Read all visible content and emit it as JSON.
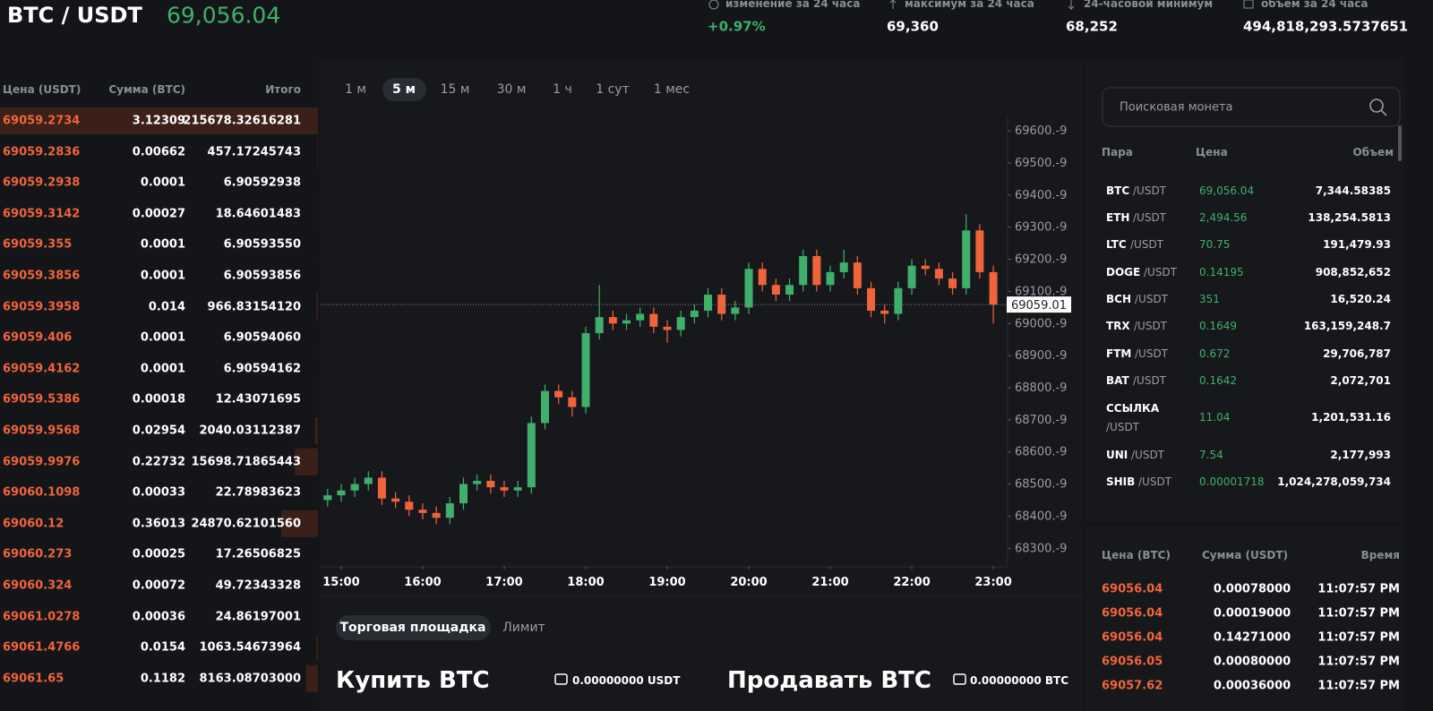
{
  "header": {
    "pair": "BTC / USDT",
    "price": "69,056.04",
    "stats": [
      {
        "label": "изменение за 24 часа",
        "value": "+0.97%"
      },
      {
        "label": "максимум за 24 часа",
        "value": "69,360"
      },
      {
        "label": "24-часовой минимум",
        "value": "68,252"
      },
      {
        "label": "объем за 24 часа",
        "value": "494,818,293.5737651"
      }
    ]
  },
  "order_book": {
    "columns": [
      "Цена (USDT)",
      "Сумма (BTC)",
      "Итого"
    ],
    "rows": [
      [
        "69059.2734",
        "3.12309",
        "215678.32616281"
      ],
      [
        "69059.2836",
        "0.00662",
        "457.17245743"
      ],
      [
        "69059.2938",
        "0.0001",
        "6.90592938"
      ],
      [
        "69059.3142",
        "0.00027",
        "18.64601483"
      ],
      [
        "69059.355",
        "0.0001",
        "6.90593550"
      ],
      [
        "69059.3856",
        "0.0001",
        "6.90593856"
      ],
      [
        "69059.3958",
        "0.014",
        "966.83154120"
      ],
      [
        "69059.406",
        "0.0001",
        "6.90594060"
      ],
      [
        "69059.4162",
        "0.0001",
        "6.90594162"
      ],
      [
        "69059.5386",
        "0.00018",
        "12.43071695"
      ],
      [
        "69059.9568",
        "0.02954",
        "2040.03112387"
      ],
      [
        "69059.9976",
        "0.22732",
        "15698.71865443"
      ],
      [
        "69060.1098",
        "0.00033",
        "22.78983623"
      ],
      [
        "69060.12",
        "0.36013",
        "24870.62101560"
      ],
      [
        "69060.273",
        "0.00025",
        "17.26506825"
      ],
      [
        "69060.324",
        "0.00072",
        "49.72343328"
      ],
      [
        "69061.0278",
        "0.00036",
        "24.86197001"
      ],
      [
        "69061.4766",
        "0.0154",
        "1063.54673964"
      ],
      [
        "69061.65",
        "0.1182",
        "8163.08703000"
      ]
    ]
  },
  "timeframes": {
    "options": [
      "1 м",
      "5 м",
      "15 м",
      "30 м",
      "1 ч",
      "1 сут",
      "1 мес"
    ],
    "active": 1
  },
  "chart_data": {
    "type": "candlestick",
    "up_color": "#3fb06b",
    "down_color": "#f0643c",
    "open": [
      68450,
      68465,
      68480,
      68500,
      68520,
      68455,
      68445,
      68420,
      68410,
      68395,
      68440,
      68500,
      68510,
      68490,
      68480,
      68490,
      68690,
      68790,
      68770,
      68740,
      68970,
      69020,
      69000,
      69010,
      69030,
      68990,
      68980,
      69020,
      69040,
      69090,
      69030,
      69050,
      69170,
      69120,
      69090,
      69120,
      69210,
      69120,
      69160,
      69190,
      69110,
      69040,
      69030,
      69110,
      69180,
      69170,
      69140,
      69110,
      69290,
      69160
    ],
    "high": [
      68485,
      68500,
      68520,
      68540,
      68540,
      68475,
      68465,
      68440,
      68430,
      68460,
      68520,
      68530,
      68530,
      68510,
      68510,
      68710,
      68810,
      68810,
      68790,
      68990,
      69120,
      69040,
      69030,
      69050,
      69050,
      69010,
      69040,
      69060,
      69110,
      69110,
      69070,
      69190,
      69190,
      69140,
      69140,
      69230,
      69230,
      69180,
      69230,
      69210,
      69130,
      69060,
      69130,
      69200,
      69200,
      69190,
      69160,
      69340,
      69310,
      69180
    ],
    "low": [
      68430,
      68445,
      68460,
      68480,
      68435,
      68425,
      68400,
      68390,
      68375,
      68375,
      68420,
      68480,
      68470,
      68460,
      68460,
      68470,
      68670,
      68750,
      68710,
      68720,
      68950,
      68980,
      68980,
      68990,
      68970,
      68940,
      68960,
      69000,
      69020,
      69010,
      69010,
      69030,
      69100,
      69070,
      69070,
      69100,
      69100,
      69100,
      69140,
      69090,
      69020,
      69000,
      69010,
      69090,
      69150,
      69120,
      69090,
      69090,
      69140,
      69000
    ],
    "close": [
      68465,
      68480,
      68500,
      68520,
      68455,
      68445,
      68420,
      68410,
      68395,
      68440,
      68500,
      68510,
      68490,
      68480,
      68490,
      68690,
      68790,
      68770,
      68740,
      68970,
      69020,
      69000,
      69010,
      69030,
      68990,
      68980,
      69020,
      69040,
      69090,
      69030,
      69050,
      69170,
      69120,
      69090,
      69120,
      69210,
      69120,
      69160,
      69190,
      69110,
      69040,
      69030,
      69110,
      69180,
      69170,
      69140,
      69110,
      69290,
      69160,
      69059
    ],
    "xlim": [
      -0.58,
      50.05
    ],
    "xticks": [
      {
        "value": 1,
        "label": "15:00"
      },
      {
        "value": 7,
        "label": "16:00"
      },
      {
        "value": 13,
        "label": "17:00"
      },
      {
        "value": 19,
        "label": "18:00"
      },
      {
        "value": 25,
        "label": "19:00"
      },
      {
        "value": 31,
        "label": "20:00"
      },
      {
        "value": 37,
        "label": "21:00"
      },
      {
        "value": 43,
        "label": "22:00"
      },
      {
        "value": 49,
        "label": "23:00"
      }
    ],
    "ylim": [
      68245,
      69645
    ],
    "yticks": [
      {
        "value": 69600,
        "label": "69600.-9"
      },
      {
        "value": 69500,
        "label": "69500.-9"
      },
      {
        "value": 69400,
        "label": "69400.-9"
      },
      {
        "value": 69300,
        "label": "69300.-9"
      },
      {
        "value": 69200,
        "label": "69200.-9"
      },
      {
        "value": 69100,
        "label": "69100.-9"
      },
      {
        "value": 69000,
        "label": "69000.-9"
      },
      {
        "value": 68900,
        "label": "68900.-9"
      },
      {
        "value": 68800,
        "label": "68800.-9"
      },
      {
        "value": 68700,
        "label": "68700.-9"
      },
      {
        "value": 68600,
        "label": "68600.-9"
      },
      {
        "value": 68500,
        "label": "68500.-9"
      },
      {
        "value": 68400,
        "label": "68400.-9"
      },
      {
        "value": 68300,
        "label": "68300.-9"
      }
    ],
    "last_price": 69059.01,
    "grid": false
  },
  "search": {
    "placeholder": "Поисковая монета"
  },
  "markets": {
    "columns": [
      "Пара",
      "Цена",
      "Объем"
    ],
    "rows": [
      {
        "base": "BTC",
        "quote": "/USDT",
        "price": "69,056.04",
        "volume": "7,344.58385"
      },
      {
        "base": "ETH",
        "quote": "/USDT",
        "price": "2,494.56",
        "volume": "138,254.5813"
      },
      {
        "base": "LTC",
        "quote": "/USDT",
        "price": "70.75",
        "volume": "191,479.93"
      },
      {
        "base": "DOGE",
        "quote": "/USDT",
        "price": "0.14195",
        "volume": "908,852,652"
      },
      {
        "base": "BCH",
        "quote": "/USDT",
        "price": "351",
        "volume": "16,520.24"
      },
      {
        "base": "TRX",
        "quote": "/USDT",
        "price": "0.1649",
        "volume": "163,159,248.7"
      },
      {
        "base": "FTM",
        "quote": "/USDT",
        "price": "0.672",
        "volume": "29,706,787"
      },
      {
        "base": "BAT",
        "quote": "/USDT",
        "price": "0.1642",
        "volume": "2,072,701"
      },
      {
        "base": "ССЫЛКА",
        "quote": "/USDT",
        "price": "11.04",
        "volume": "1,201,531.16"
      },
      {
        "base": "UNI",
        "quote": "/USDT",
        "price": "7.54",
        "volume": "2,177,993"
      },
      {
        "base": "SHIB",
        "quote": "/USDT",
        "price": "0.00001718",
        "volume": "1,024,278,059,734"
      }
    ]
  },
  "trades": {
    "columns": [
      "Цена (BTC)",
      "Сумма (USDT)",
      "Время"
    ],
    "rows": [
      [
        "69056.04",
        "0.00078000",
        "11:07:57 PM"
      ],
      [
        "69056.04",
        "0.00019000",
        "11:07:57 PM"
      ],
      [
        "69056.04",
        "0.14271000",
        "11:07:57 PM"
      ],
      [
        "69056.05",
        "0.00080000",
        "11:07:57 PM"
      ],
      [
        "69057.62",
        "0.00036000",
        "11:07:57 PM"
      ]
    ]
  },
  "trade_tabs": {
    "tabs": [
      "Торговая площадка",
      "Лимит"
    ],
    "active": 0
  },
  "buy": {
    "title": "Купить BTC",
    "balance": "0.00000000 USDT"
  },
  "sell": {
    "title": "Продавать BTC",
    "balance": "0.00000000 BTC"
  }
}
